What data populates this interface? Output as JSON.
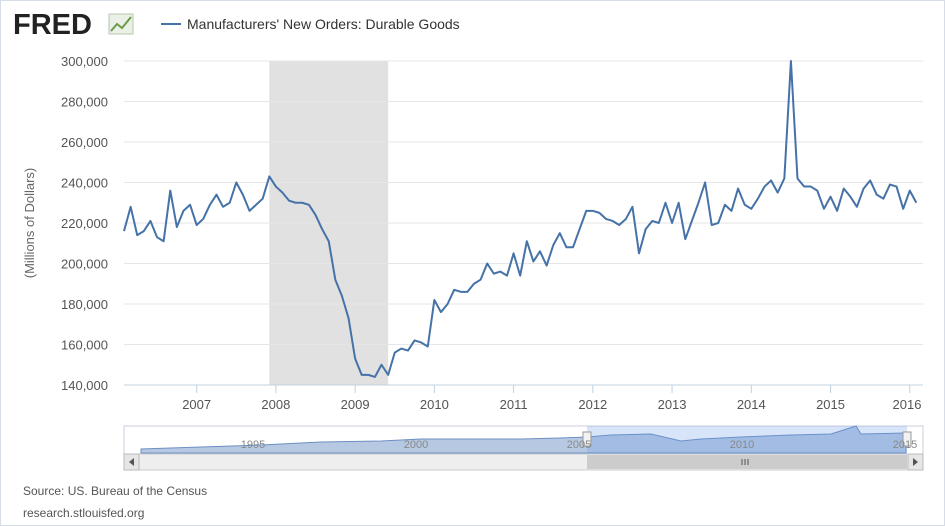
{
  "logo": "FRED",
  "chart_data": {
    "type": "line",
    "ylabel": "(Millions of Dollars)",
    "xlim": [
      2006.083,
      2016.167
    ],
    "xticks": [
      2007,
      2008,
      2009,
      2010,
      2011,
      2012,
      2013,
      2014,
      2015,
      2016
    ],
    "ylim": [
      140000,
      300000
    ],
    "yticks": [
      {
        "value": 140000,
        "label": "140,000"
      },
      {
        "value": 160000,
        "label": "160,000"
      },
      {
        "value": 180000,
        "label": "180,000"
      },
      {
        "value": 200000,
        "label": "200,000"
      },
      {
        "value": 220000,
        "label": "220,000"
      },
      {
        "value": 240000,
        "label": "240,000"
      },
      {
        "value": 260000,
        "label": "260,000"
      },
      {
        "value": 280000,
        "label": "280,000"
      },
      {
        "value": 300000,
        "label": "300,000"
      }
    ],
    "grid": true,
    "recessions": [
      [
        2007.917,
        2009.417
      ]
    ],
    "x": [
      2006.083,
      2006.167,
      2006.25,
      2006.333,
      2006.417,
      2006.5,
      2006.583,
      2006.667,
      2006.75,
      2006.833,
      2006.917,
      2007,
      2007.083,
      2007.167,
      2007.25,
      2007.333,
      2007.417,
      2007.5,
      2007.583,
      2007.667,
      2007.75,
      2007.833,
      2007.917,
      2008,
      2008.083,
      2008.167,
      2008.25,
      2008.333,
      2008.417,
      2008.5,
      2008.583,
      2008.667,
      2008.75,
      2008.833,
      2008.917,
      2009,
      2009.083,
      2009.167,
      2009.25,
      2009.333,
      2009.417,
      2009.5,
      2009.583,
      2009.667,
      2009.75,
      2009.833,
      2009.917,
      2010,
      2010.083,
      2010.167,
      2010.25,
      2010.333,
      2010.417,
      2010.5,
      2010.583,
      2010.667,
      2010.75,
      2010.833,
      2010.917,
      2011,
      2011.083,
      2011.167,
      2011.25,
      2011.333,
      2011.417,
      2011.5,
      2011.583,
      2011.667,
      2011.75,
      2011.833,
      2011.917,
      2012,
      2012.083,
      2012.167,
      2012.25,
      2012.333,
      2012.417,
      2012.5,
      2012.583,
      2012.667,
      2012.75,
      2012.833,
      2012.917,
      2013,
      2013.083,
      2013.167,
      2013.25,
      2013.333,
      2013.417,
      2013.5,
      2013.583,
      2013.667,
      2013.75,
      2013.833,
      2013.917,
      2014,
      2014.083,
      2014.167,
      2014.25,
      2014.333,
      2014.417,
      2014.5,
      2014.583,
      2014.667,
      2014.75,
      2014.833,
      2014.917,
      2015,
      2015.083,
      2015.167,
      2015.25,
      2015.333,
      2015.417,
      2015.5,
      2015.583,
      2015.667,
      2015.75,
      2015.833,
      2015.917,
      2016,
      2016.083
    ],
    "series": [
      {
        "name": "Manufacturers' New Orders: Durable Goods",
        "color": "#4572a7",
        "values": [
          216000,
          228000,
          214000,
          216000,
          221000,
          213000,
          211000,
          236000,
          218000,
          226000,
          229000,
          219000,
          222000,
          229000,
          234000,
          228000,
          230000,
          240000,
          234000,
          226000,
          229000,
          232000,
          243000,
          238000,
          235000,
          231000,
          230000,
          230000,
          229000,
          224000,
          217000,
          211000,
          192000,
          184000,
          173000,
          153000,
          145000,
          145000,
          144000,
          150000,
          145000,
          156000,
          158000,
          157000,
          162000,
          161000,
          159000,
          182000,
          176000,
          180000,
          187000,
          186000,
          186000,
          190000,
          192000,
          200000,
          195000,
          196000,
          194000,
          205000,
          194000,
          211000,
          201000,
          206000,
          199000,
          209000,
          215000,
          208000,
          208000,
          217000,
          226000,
          226000,
          225000,
          222000,
          221000,
          219000,
          222000,
          228000,
          205000,
          217000,
          221000,
          220000,
          230000,
          220000,
          230000,
          212000,
          221000,
          230000,
          240000,
          219000,
          220000,
          229000,
          226000,
          237000,
          229000,
          227000,
          232000,
          238000,
          241000,
          235000,
          242000,
          300000,
          242000,
          238000,
          238000,
          236000,
          227000,
          233000,
          226000,
          237000,
          233000,
          228000,
          237000,
          241000,
          234000,
          232000,
          239000,
          238000,
          227000,
          236000,
          230000
        ]
      }
    ]
  },
  "navigator": {
    "labels": [
      "1995",
      "2000",
      "2005",
      "2010",
      "2015"
    ]
  },
  "source": "Source: US. Bureau of the Census",
  "site": "research.stlouisfed.org"
}
